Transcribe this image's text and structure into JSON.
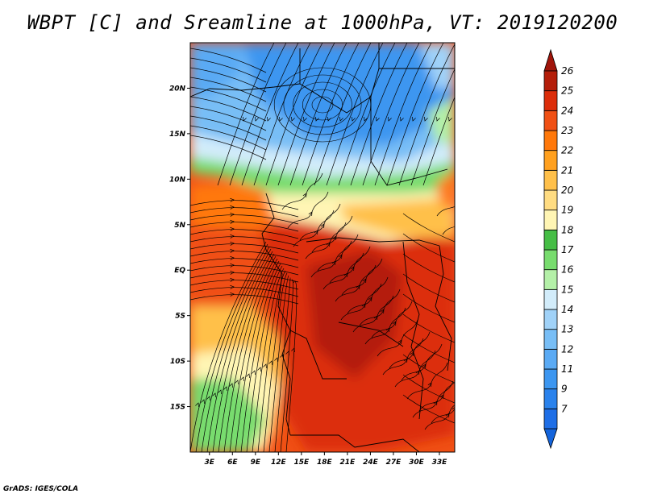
{
  "title": "WBPT [C] and Sreamline at 1000hPa, VT: 2019120200",
  "footer": "GrADS: IGES/COLA",
  "map": {
    "lat_labels": [
      {
        "label": "20N",
        "lat": 20
      },
      {
        "label": "15N",
        "lat": 15
      },
      {
        "label": "10N",
        "lat": 10
      },
      {
        "label": "5N",
        "lat": 5
      },
      {
        "label": "EQ",
        "lat": 0
      },
      {
        "label": "5S",
        "lat": -5
      },
      {
        "label": "10S",
        "lat": -10
      },
      {
        "label": "15S",
        "lat": -15
      }
    ],
    "lon_labels": [
      {
        "label": "3E",
        "lon": 3
      },
      {
        "label": "6E",
        "lon": 6
      },
      {
        "label": "9E",
        "lon": 9
      },
      {
        "label": "12E",
        "lon": 12
      },
      {
        "label": "15E",
        "lon": 15
      },
      {
        "label": "18E",
        "lon": 18
      },
      {
        "label": "21E",
        "lon": 21
      },
      {
        "label": "24E",
        "lon": 24
      },
      {
        "label": "27E",
        "lon": 27
      },
      {
        "label": "30E",
        "lon": 30
      },
      {
        "label": "33E",
        "lon": 33
      }
    ],
    "lon_range": [
      0.5,
      35
    ],
    "lat_range": [
      -20,
      25
    ]
  },
  "colorbar": {
    "levels": [
      {
        "label": "7",
        "color": "#1e6ee6"
      },
      {
        "label": "9",
        "color": "#2a82ec"
      },
      {
        "label": "11",
        "color": "#3c96f0"
      },
      {
        "label": "12",
        "color": "#5aaaf4"
      },
      {
        "label": "13",
        "color": "#78bef6"
      },
      {
        "label": "14",
        "color": "#a0d2f8"
      },
      {
        "label": "15",
        "color": "#d2ecfa"
      },
      {
        "label": "16",
        "color": "#b4f0a8"
      },
      {
        "label": "17",
        "color": "#78dc6e"
      },
      {
        "label": "18",
        "color": "#46be46"
      },
      {
        "label": "19",
        "color": "#fff5b4"
      },
      {
        "label": "20",
        "color": "#ffdc82"
      },
      {
        "label": "21",
        "color": "#ffc04a"
      },
      {
        "label": "22",
        "color": "#ffa01e"
      },
      {
        "label": "23",
        "color": "#ff780a"
      },
      {
        "label": "24",
        "color": "#f05014"
      },
      {
        "label": "25",
        "color": "#dc2d0a"
      },
      {
        "label": "26",
        "color": "#b41e0a"
      }
    ],
    "under_color": "#1464dc",
    "over_color": "#a0140a"
  }
}
